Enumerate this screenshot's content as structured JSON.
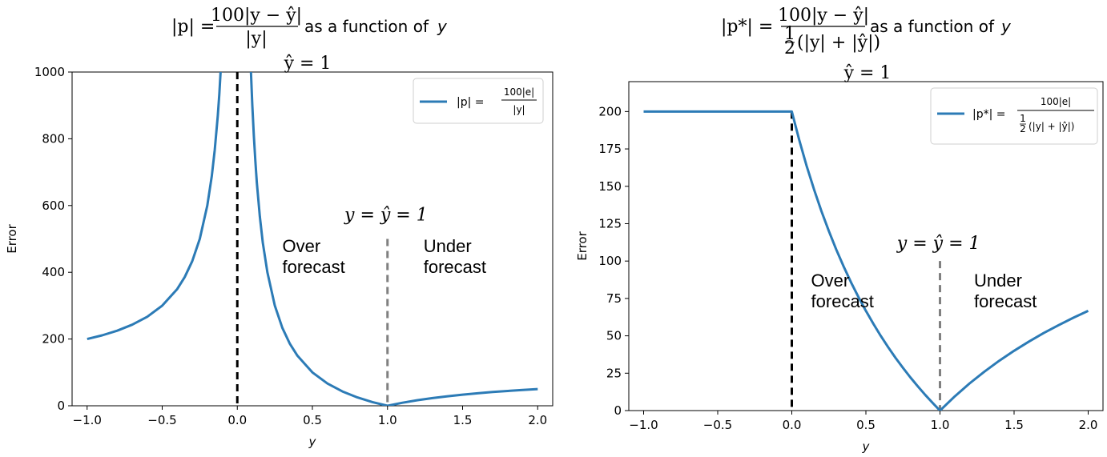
{
  "chart_data": [
    {
      "type": "line",
      "title_text": "as a function of",
      "title_var": "y",
      "subtitle": "ŷ = 1",
      "formula": {
        "lhs": "|p| =",
        "num": "100|y − ŷ|",
        "den": "|y|"
      },
      "xlabel": "y",
      "ylabel": "Error",
      "xlim": [
        -1.1,
        2.1
      ],
      "ylim": [
        0,
        1000
      ],
      "x_ticks": [
        "−1.0",
        "−0.5",
        "0.0",
        "0.5",
        "1.0",
        "1.5",
        "2.0"
      ],
      "x_tick_values": [
        -1.0,
        -0.5,
        0.0,
        0.5,
        1.0,
        1.5,
        2.0
      ],
      "y_ticks": [
        "0",
        "200",
        "400",
        "600",
        "800",
        "1000"
      ],
      "y_tick_values": [
        0,
        200,
        400,
        600,
        800,
        1000
      ],
      "series": [
        {
          "legend_lhs": "|p| =",
          "legend_num": "100|e|",
          "legend_den": "|y|",
          "color": "#2c7bb6",
          "x": [
            -1.0,
            -0.9,
            -0.8,
            -0.7,
            -0.6,
            -0.5,
            -0.4,
            -0.35,
            -0.3,
            -0.25,
            -0.2,
            -0.17,
            -0.15,
            -0.13,
            -0.12,
            -0.11,
            -0.1,
            -0.09,
            0.09,
            0.1,
            0.11,
            0.12,
            0.13,
            0.15,
            0.17,
            0.2,
            0.25,
            0.3,
            0.35,
            0.4,
            0.5,
            0.6,
            0.7,
            0.8,
            0.9,
            1.0,
            1.1,
            1.2,
            1.3,
            1.4,
            1.5,
            1.6,
            1.7,
            1.8,
            1.9,
            2.0
          ],
          "y": [
            200,
            211.1,
            225,
            242.9,
            266.7,
            300,
            350,
            385.7,
            433.3,
            500,
            600,
            688.2,
            766.7,
            869.2,
            933.3,
            1009.1,
            1100,
            1211.1,
            1011.1,
            900,
            809.1,
            733.3,
            669.2,
            566.7,
            488.2,
            400,
            300,
            233.3,
            185.7,
            150,
            100,
            66.7,
            42.9,
            25,
            11.1,
            0,
            9.1,
            16.7,
            23.1,
            28.6,
            33.3,
            37.5,
            41.2,
            44.4,
            47.4,
            50
          ]
        }
      ],
      "vlines": [
        {
          "x": 0.0,
          "y_top": 1000,
          "color": "#000000"
        },
        {
          "x": 1.0,
          "y_top": 500,
          "color": "#808080"
        }
      ],
      "annotations": [
        {
          "text_a": "Over",
          "text_b": "forecast",
          "x": 0.3,
          "y": 460
        },
        {
          "text_a": "Under",
          "text_b": "forecast",
          "x": 1.24,
          "y": 460
        },
        {
          "text": "y = ŷ = 1",
          "x": 0.99,
          "y": 555
        }
      ]
    },
    {
      "type": "line",
      "title_text": "as a function of",
      "title_var": "y",
      "subtitle": "ŷ = 1",
      "formula": {
        "lhs": "|p*| =",
        "num": "100|y − ŷ|",
        "den_frac_num": "1",
        "den_frac_den": "2",
        "den_rest": "(|y| + |ŷ|)"
      },
      "xlabel": "y",
      "ylabel": "Error",
      "xlim": [
        -1.1,
        2.1
      ],
      "ylim": [
        0,
        220
      ],
      "x_ticks": [
        "−1.0",
        "−0.5",
        "0.0",
        "0.5",
        "1.0",
        "1.5",
        "2.0"
      ],
      "x_tick_values": [
        -1.0,
        -0.5,
        0.0,
        0.5,
        1.0,
        1.5,
        2.0
      ],
      "y_ticks": [
        "0",
        "25",
        "50",
        "75",
        "100",
        "125",
        "150",
        "175",
        "200"
      ],
      "y_tick_values": [
        0,
        25,
        50,
        75,
        100,
        125,
        150,
        175,
        200
      ],
      "series": [
        {
          "legend_lhs": "|p*| =",
          "legend_num": "100|e|",
          "legend_den_frac_num": "1",
          "legend_den_frac_den": "2",
          "legend_den_rest": "(|y| + |ŷ|)",
          "color": "#2c7bb6",
          "x": [
            -1.0,
            -0.5,
            0.0,
            0.05,
            0.1,
            0.15,
            0.2,
            0.25,
            0.3,
            0.35,
            0.4,
            0.45,
            0.5,
            0.55,
            0.6,
            0.65,
            0.7,
            0.75,
            0.8,
            0.85,
            0.9,
            0.95,
            1.0,
            1.1,
            1.2,
            1.3,
            1.4,
            1.5,
            1.6,
            1.7,
            1.8,
            1.9,
            2.0
          ],
          "y": [
            200,
            200,
            200,
            180.95,
            163.64,
            147.83,
            133.33,
            120,
            107.69,
            96.3,
            85.71,
            75.86,
            66.67,
            58.06,
            50,
            42.42,
            35.29,
            28.57,
            22.22,
            16.22,
            10.53,
            5.13,
            0,
            9.52,
            18.18,
            26.09,
            33.33,
            40,
            46.15,
            51.85,
            57.14,
            62.07,
            66.67
          ]
        }
      ],
      "vlines": [
        {
          "x": 0.0,
          "y_top": 200,
          "color": "#000000"
        },
        {
          "x": 1.0,
          "y_top": 100,
          "color": "#808080"
        }
      ],
      "annotations": [
        {
          "text_a": "Over",
          "text_b": "forecast",
          "x": 0.13,
          "y": 83
        },
        {
          "text_a": "Under",
          "text_b": "forecast",
          "x": 1.23,
          "y": 83
        },
        {
          "text": "y = ŷ = 1",
          "x": 0.99,
          "y": 108
        }
      ]
    }
  ]
}
